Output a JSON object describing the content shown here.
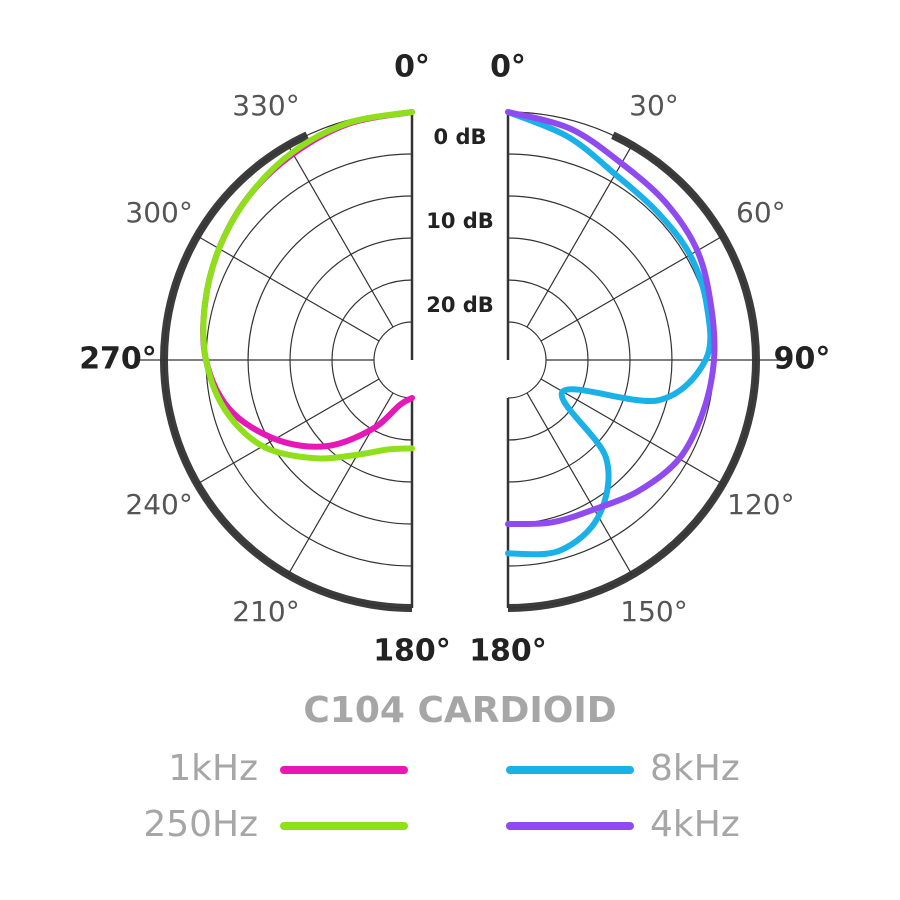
{
  "title": "C104 CARDIOID",
  "chart_data": [
    {
      "type": "polar",
      "rlim": [
        0,
        25
      ],
      "rticks": [
        {
          "value": 0,
          "label": "0 dB"
        },
        {
          "value": 5,
          "label": null
        },
        {
          "value": 10,
          "label": "10 dB"
        },
        {
          "value": 15,
          "label": null
        },
        {
          "value": 20,
          "label": "20 dB"
        }
      ],
      "thetaticks": [
        {
          "value": 180,
          "label": "180°"
        },
        {
          "value": 210,
          "label": "210°"
        },
        {
          "value": 240,
          "label": "240°"
        },
        {
          "value": 270,
          "label": "270°"
        },
        {
          "value": 300,
          "label": "300°"
        },
        {
          "value": 330,
          "label": "330°"
        },
        {
          "value": 360,
          "label": "0°"
        }
      ],
      "series": [
        {
          "name": "1kHz",
          "color": "#e619b8",
          "theta": [
            180,
            195,
            210,
            225,
            240,
            255,
            270,
            285,
            300,
            315,
            330,
            345,
            360
          ],
          "values": [
            25,
            24,
            20,
            15,
            10.7,
            7,
            5,
            4,
            3,
            2,
            1.2,
            0.4,
            0
          ]
        },
        {
          "name": "250Hz",
          "color": "#8fe01a",
          "theta": [
            180,
            195,
            210,
            225,
            240,
            255,
            270,
            285,
            300,
            315,
            330,
            345,
            360
          ],
          "values": [
            19,
            18.5,
            16.5,
            13,
            9,
            6.5,
            5,
            4,
            3,
            2,
            1,
            0.3,
            0
          ]
        }
      ]
    },
    {
      "type": "polar",
      "rlim": [
        0,
        25
      ],
      "rticks": [
        {
          "value": 0,
          "label": null
        },
        {
          "value": 5,
          "label": null
        },
        {
          "value": 10,
          "label": null
        },
        {
          "value": 15,
          "label": null
        },
        {
          "value": 20,
          "label": null
        }
      ],
      "thetaticks": [
        {
          "value": 0,
          "label": "0°"
        },
        {
          "value": 30,
          "label": "30°"
        },
        {
          "value": 60,
          "label": "60°"
        },
        {
          "value": 90,
          "label": "90°"
        },
        {
          "value": 120,
          "label": "120°"
        },
        {
          "value": 150,
          "label": "150°"
        },
        {
          "value": 180,
          "label": "180°"
        }
      ],
      "series": [
        {
          "name": "8kHz",
          "color": "#1ab0e8",
          "theta": [
            0,
            15,
            30,
            45,
            60,
            75,
            90,
            105,
            120,
            135,
            150,
            165,
            180
          ],
          "values": [
            0,
            2,
            4,
            4.5,
            4.5,
            5,
            6,
            11,
            22,
            13,
            8,
            6,
            6.5
          ]
        },
        {
          "name": "4kHz",
          "color": "#8f4af0",
          "theta": [
            0,
            15,
            30,
            45,
            60,
            75,
            90,
            105,
            120,
            135,
            150,
            165,
            180
          ],
          "values": [
            0,
            1,
            2.5,
            3,
            3.5,
            4.5,
            5,
            5.5,
            6,
            7.5,
            9,
            9.5,
            10
          ]
        }
      ]
    }
  ]
}
